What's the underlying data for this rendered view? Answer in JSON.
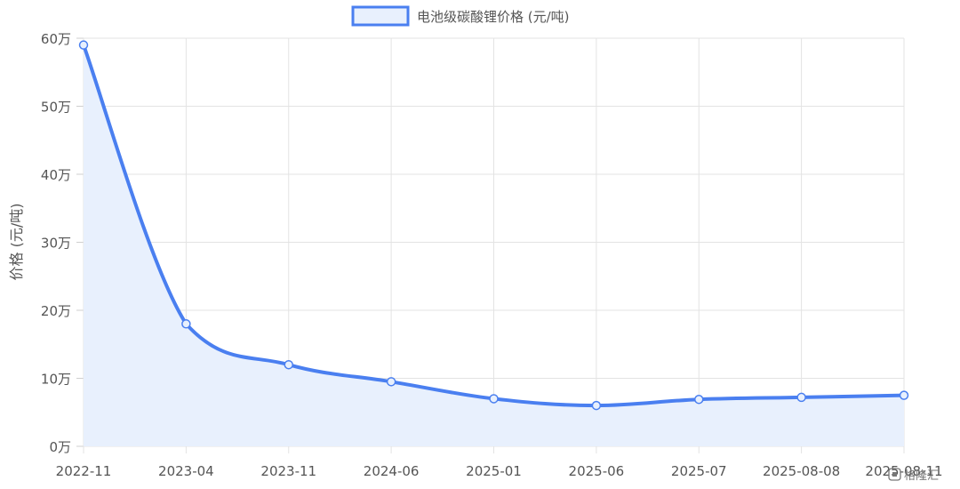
{
  "chart_data": {
    "type": "line",
    "categories": [
      "2022-11",
      "2023-04",
      "2023-11",
      "2024-06",
      "2025-01",
      "2025-06",
      "2025-07",
      "2025-08-08",
      "2025-08-11"
    ],
    "series": [
      {
        "name": "电池级碳酸锂价格 (元/吨)",
        "values": [
          590000,
          180000,
          120000,
          95000,
          70000,
          60000,
          69000,
          72000,
          75000
        ],
        "color": "#4a7ff0",
        "fill": "#e8f0fd"
      }
    ],
    "ylabel": "价格 (元/吨)",
    "ylim": [
      0,
      600000
    ],
    "y_ticks": [
      0,
      100000,
      200000,
      300000,
      400000,
      500000,
      600000
    ],
    "y_tick_labels": [
      "0万",
      "10万",
      "20万",
      "30万",
      "40万",
      "50万",
      "60万"
    ],
    "grid": true,
    "legend_position": "top-center"
  },
  "watermark": {
    "icon": "gelonghui-logo-icon",
    "text": "格隆汇"
  }
}
